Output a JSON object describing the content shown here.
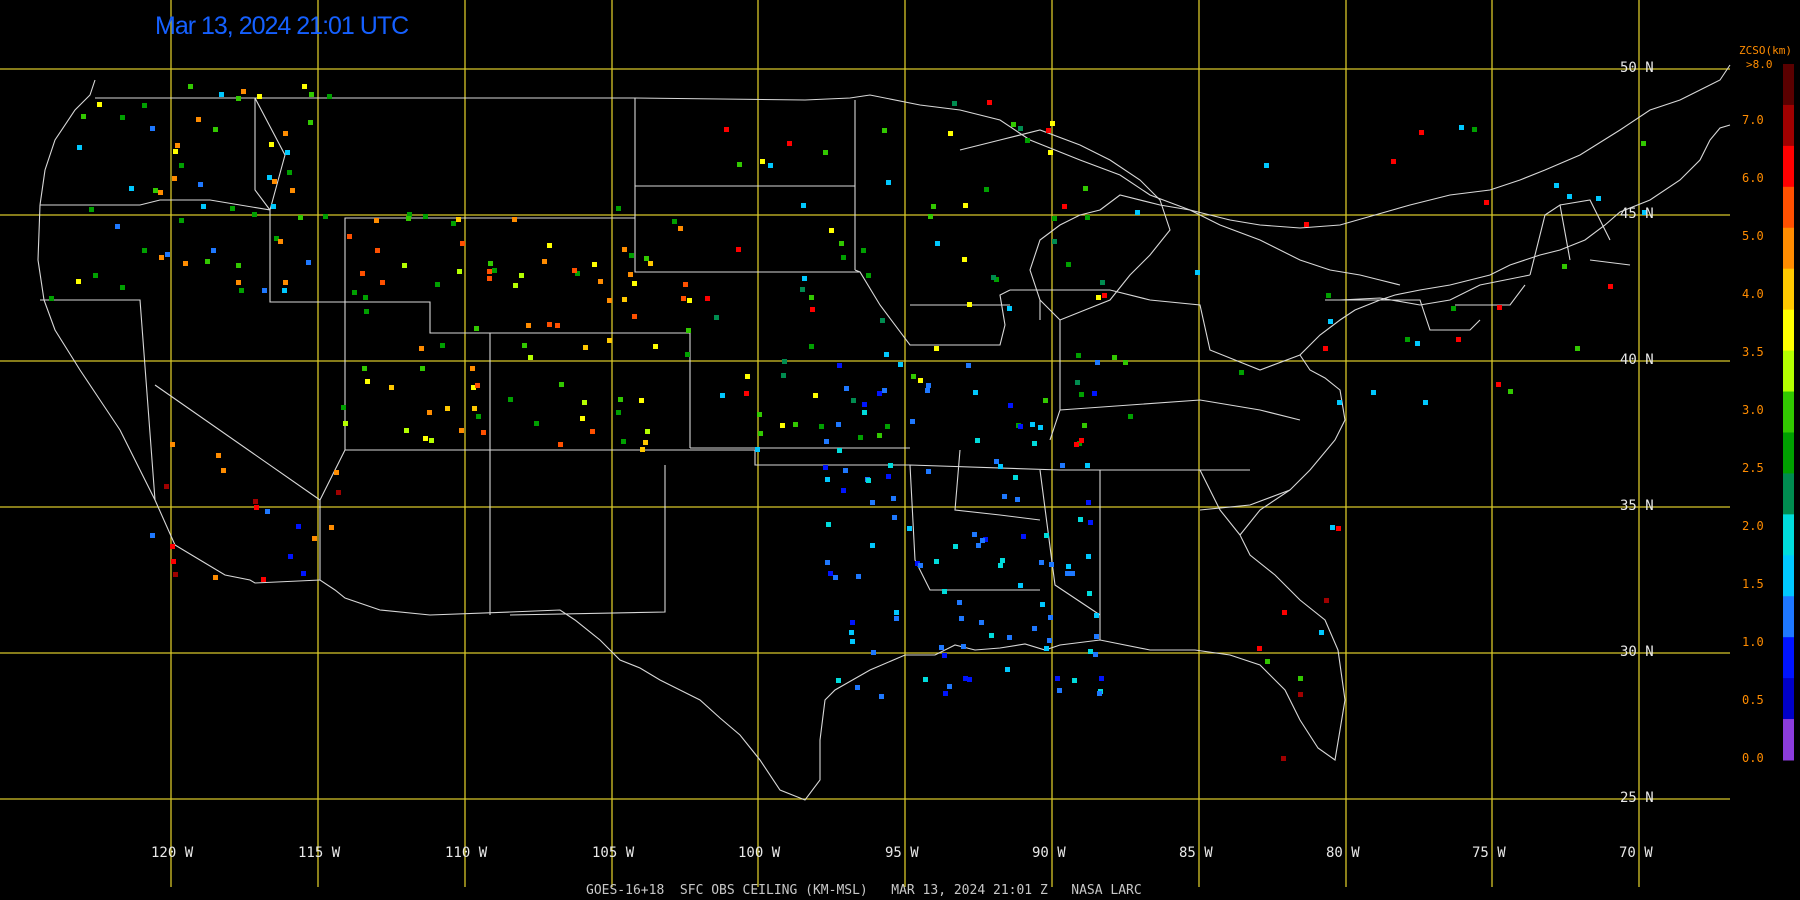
{
  "title": "Mar 13, 2024 21:01 UTC",
  "footer": "GOES-16+18  SFC OBS CEILING (KM-MSL)   MAR 13, 2024 21:01 Z   NASA LARC",
  "lat_labels": [
    "50 N",
    "45 N",
    "40 N",
    "35 N",
    "30 N",
    "25 N"
  ],
  "lon_labels": [
    "120 W",
    "115 W",
    "110 W",
    "105 W",
    "100 W",
    "95 W",
    "90 W",
    "85 W",
    "80 W",
    "75 W",
    "70 W"
  ],
  "colorbar": {
    "title": "ZCSO(km)",
    "top_label": ">8.0",
    "ticks": [
      "7.0",
      "6.0",
      "5.0",
      "4.0",
      "3.5",
      "3.0",
      "2.5",
      "2.0",
      "1.5",
      "1.0",
      "0.5",
      "0.0"
    ],
    "colors": [
      "#5a0000",
      "#a00000",
      "#ff0000",
      "#ff5000",
      "#ff8c00",
      "#ffc800",
      "#ffff00",
      "#b4ff00",
      "#32c800",
      "#00a000",
      "#008c50",
      "#00dcdc",
      "#00c8ff",
      "#1e78ff",
      "#0014ff",
      "#0000c8",
      "#8c3cdc"
    ]
  },
  "icons": {
    "background": "map-of-continental-us"
  }
}
